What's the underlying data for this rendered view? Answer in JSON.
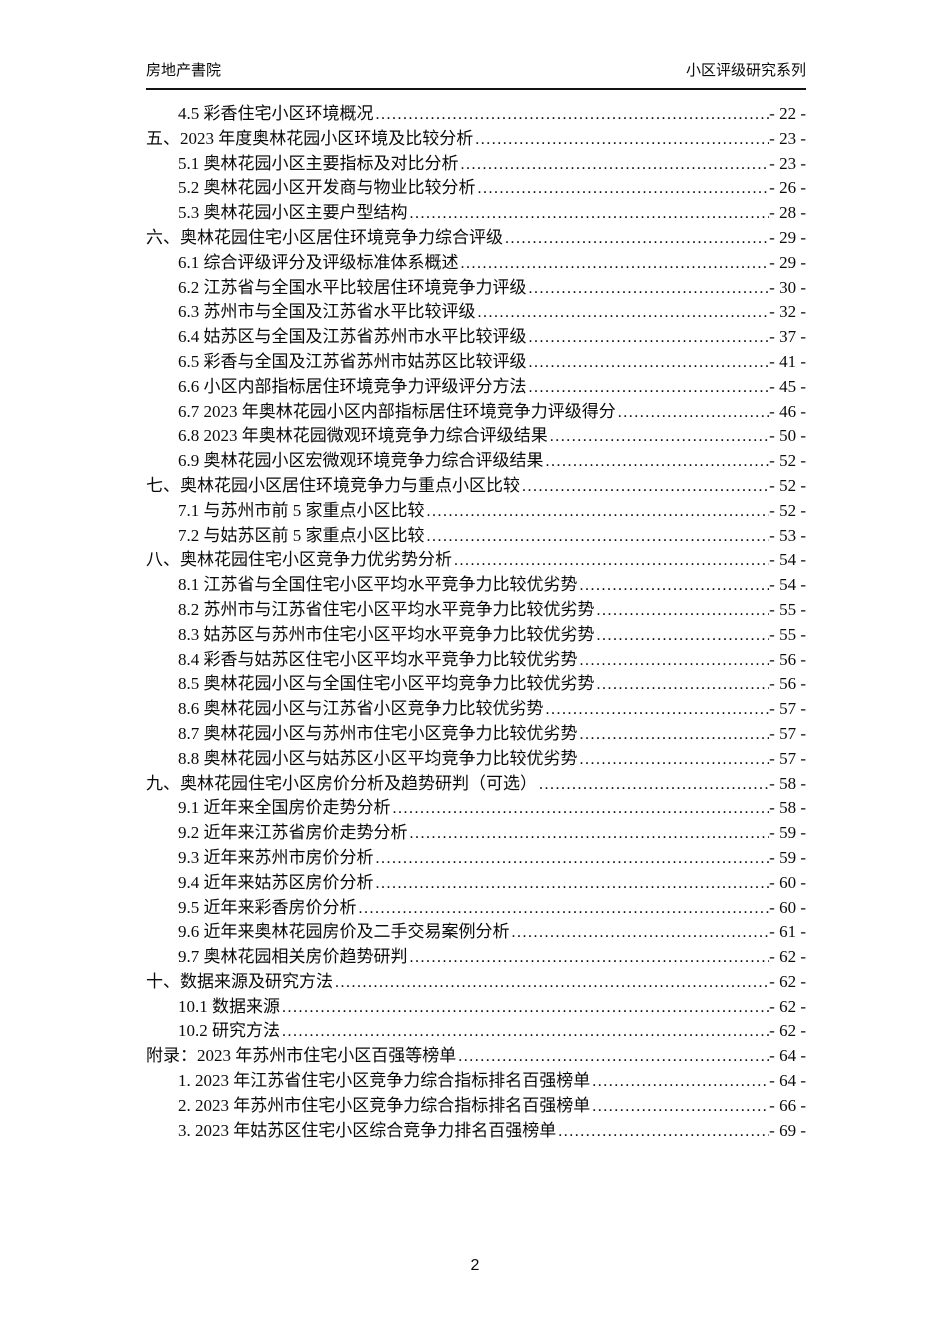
{
  "header": {
    "left": "房地产書院",
    "right": "小区评级研究系列"
  },
  "footer": {
    "page_number": "2"
  },
  "toc": {
    "entries": [
      {
        "level": 2,
        "label": "4.5 彩香住宅小区环境概况",
        "page": "- 22 -"
      },
      {
        "level": 1,
        "label": "五、2023 年度奥林花园小区环境及比较分析",
        "page": "- 23 -"
      },
      {
        "level": 2,
        "label": "5.1 奥林花园小区主要指标及对比分析",
        "page": "- 23 -"
      },
      {
        "level": 2,
        "label": "5.2 奥林花园小区开发商与物业比较分析",
        "page": "- 26 -"
      },
      {
        "level": 2,
        "label": "5.3 奥林花园小区主要户型结构",
        "page": "- 28 -"
      },
      {
        "level": 1,
        "label": "六、奥林花园住宅小区居住环境竞争力综合评级",
        "page": "- 29 -"
      },
      {
        "level": 2,
        "label": "6.1 综合评级评分及评级标准体系概述",
        "page": "- 29 -"
      },
      {
        "level": 2,
        "label": "6.2 江苏省与全国水平比较居住环境竞争力评级",
        "page": "- 30 -"
      },
      {
        "level": 2,
        "label": "6.3 苏州市与全国及江苏省水平比较评级",
        "page": "- 32 -"
      },
      {
        "level": 2,
        "label": "6.4 姑苏区与全国及江苏省苏州市水平比较评级",
        "page": "- 37 -"
      },
      {
        "level": 2,
        "label": "6.5 彩香与全国及江苏省苏州市姑苏区比较评级",
        "page": "- 41 -"
      },
      {
        "level": 2,
        "label": "6.6 小区内部指标居住环境竞争力评级评分方法",
        "page": "- 45 -"
      },
      {
        "level": 2,
        "label": "6.7 2023 年奥林花园小区内部指标居住环境竞争力评级得分",
        "page": "- 46 -"
      },
      {
        "level": 2,
        "label": "6.8 2023 年奥林花园微观环境竞争力综合评级结果",
        "page": "- 50 -"
      },
      {
        "level": 2,
        "label": "6.9 奥林花园小区宏微观环境竞争力综合评级结果",
        "page": "- 52 -"
      },
      {
        "level": 1,
        "label": "七、奥林花园小区居住环境竞争力与重点小区比较",
        "page": "- 52 -"
      },
      {
        "level": 2,
        "label": "7.1 与苏州市前 5 家重点小区比较",
        "page": "- 52 -"
      },
      {
        "level": 2,
        "label": "7.2 与姑苏区前 5 家重点小区比较",
        "page": "- 53 -"
      },
      {
        "level": 1,
        "label": "八、奥林花园住宅小区竞争力优劣势分析",
        "page": "- 54 -"
      },
      {
        "level": 2,
        "label": "8.1 江苏省与全国住宅小区平均水平竞争力比较优劣势",
        "page": "- 54 -"
      },
      {
        "level": 2,
        "label": "8.2 苏州市与江苏省住宅小区平均水平竞争力比较优劣势",
        "page": "- 55 -"
      },
      {
        "level": 2,
        "label": "8.3 姑苏区与苏州市住宅小区平均水平竞争力比较优劣势",
        "page": "- 55 -"
      },
      {
        "level": 2,
        "label": "8.4 彩香与姑苏区住宅小区平均水平竞争力比较优劣势",
        "page": "- 56 -"
      },
      {
        "level": 2,
        "label": "8.5 奥林花园小区与全国住宅小区平均竞争力比较优劣势",
        "page": "- 56 -"
      },
      {
        "level": 2,
        "label": "8.6 奥林花园小区与江苏省小区竞争力比较优劣势",
        "page": "- 57 -"
      },
      {
        "level": 2,
        "label": "8.7 奥林花园小区与苏州市住宅小区竞争力比较优劣势",
        "page": "- 57 -"
      },
      {
        "level": 2,
        "label": "8.8 奥林花园小区与姑苏区小区平均竞争力比较优劣势",
        "page": "- 57 -"
      },
      {
        "level": 1,
        "label": "九、奥林花园住宅小区房价分析及趋势研判（可选）",
        "page": "- 58 -"
      },
      {
        "level": 2,
        "label": "9.1 近年来全国房价走势分析",
        "page": "- 58 -"
      },
      {
        "level": 2,
        "label": "9.2 近年来江苏省房价走势分析",
        "page": "- 59 -"
      },
      {
        "level": 2,
        "label": "9.3 近年来苏州市房价分析",
        "page": "- 59 -"
      },
      {
        "level": 2,
        "label": "9.4 近年来姑苏区房价分析",
        "page": "- 60 -"
      },
      {
        "level": 2,
        "label": "9.5 近年来彩香房价分析",
        "page": "- 60 -"
      },
      {
        "level": 2,
        "label": "9.6 近年来奥林花园房价及二手交易案例分析",
        "page": "- 61 -"
      },
      {
        "level": 2,
        "label": "9.7 奥林花园相关房价趋势研判",
        "page": "- 62 -"
      },
      {
        "level": 1,
        "label": "十、数据来源及研究方法",
        "page": "- 62 -"
      },
      {
        "level": 2,
        "label": "10.1 数据来源",
        "page": "- 62 -"
      },
      {
        "level": 2,
        "label": "10.2 研究方法",
        "page": "- 62 -"
      },
      {
        "level": 1,
        "label": "附录：2023 年苏州市住宅小区百强等榜单",
        "page": "- 64 -"
      },
      {
        "level": 2,
        "label": "1. 2023 年江苏省住宅小区竞争力综合指标排名百强榜单",
        "page": "- 64 -"
      },
      {
        "level": 2,
        "label": "2. 2023 年苏州市住宅小区竞争力综合指标排名百强榜单",
        "page": "- 66 -"
      },
      {
        "level": 2,
        "label": "3. 2023 年姑苏区住宅小区综合竞争力排名百强榜单",
        "page": "- 69 -"
      }
    ]
  }
}
